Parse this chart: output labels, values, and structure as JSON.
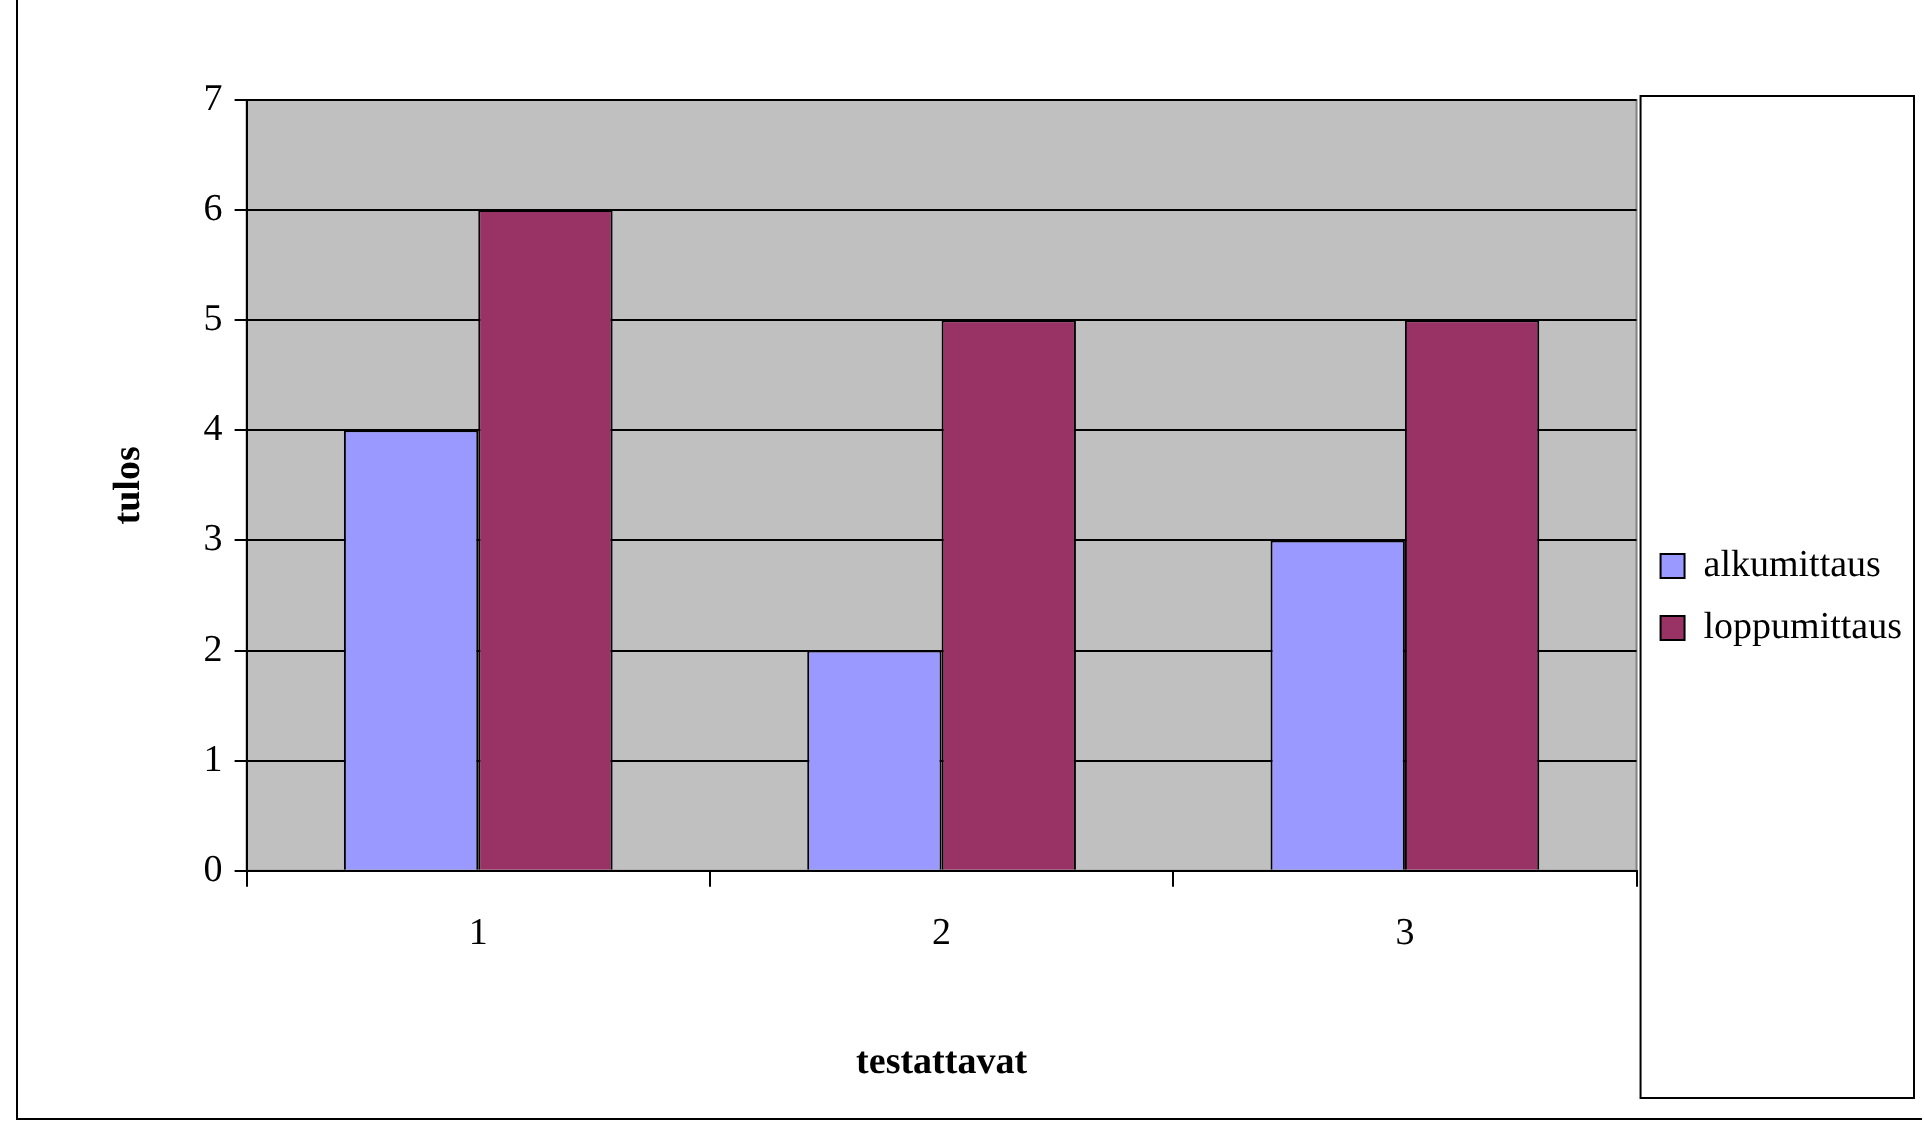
{
  "chart_data": {
    "type": "bar",
    "xlabel": "testattavat",
    "ylabel": "tulos",
    "categories": [
      "1",
      "2",
      "3"
    ],
    "series": [
      {
        "name": "alkumittaus",
        "color": "#9999ff",
        "values": [
          4,
          2,
          3
        ]
      },
      {
        "name": "loppumittaus",
        "color": "#993366",
        "values": [
          6,
          5,
          5
        ]
      }
    ],
    "ylim": [
      0,
      7
    ],
    "yticks": [
      0,
      1,
      2,
      3,
      4,
      5,
      6,
      7
    ],
    "grid": "y",
    "legend": "right"
  }
}
